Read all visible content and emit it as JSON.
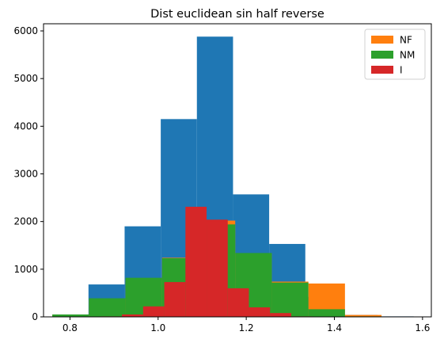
{
  "chart_data": {
    "type": "histogram",
    "title": "Dist euclidean sin half reverse",
    "xlabel": "",
    "ylabel": "",
    "xlim": [
      0.74,
      1.62
    ],
    "ylim": [
      0,
      6150
    ],
    "xticks": [
      0.8,
      1.0,
      1.2,
      1.4,
      1.6
    ],
    "xtick_labels": [
      "0.8",
      "1.0",
      "1.2",
      "1.4",
      "1.6"
    ],
    "yticks": [
      0,
      1000,
      2000,
      3000,
      4000,
      5000,
      6000
    ],
    "ytick_labels": [
      "0",
      "1000",
      "2000",
      "3000",
      "4000",
      "5000",
      "6000"
    ],
    "grid": false,
    "legend_position": "top-right",
    "series": [
      {
        "legend": false,
        "color": "#1f77b4",
        "edges": [
          0.76,
          0.842,
          0.924,
          1.006,
          1.088,
          1.17,
          1.252,
          1.334,
          1.416,
          1.498,
          1.58
        ],
        "values": [
          50,
          680,
          1900,
          4150,
          5880,
          2570,
          1530,
          420,
          40,
          10
        ]
      },
      {
        "name": "NF",
        "color": "#ff7f0e",
        "edges": [
          0.76,
          0.843,
          0.926,
          1.009,
          1.092,
          1.175,
          1.258,
          1.341,
          1.424,
          1.507
        ],
        "values": [
          50,
          350,
          760,
          1240,
          2020,
          1330,
          740,
          700,
          40
        ]
      },
      {
        "name": "NM",
        "color": "#2ca02c",
        "edges": [
          0.76,
          0.843,
          0.926,
          1.009,
          1.092,
          1.175,
          1.258,
          1.341,
          1.424,
          1.507
        ],
        "values": [
          50,
          390,
          820,
          1230,
          1940,
          1340,
          720,
          160,
          10
        ]
      },
      {
        "name": "I",
        "color": "#d62728",
        "edges": [
          0.87,
          0.918,
          0.966,
          1.014,
          1.062,
          1.11,
          1.158,
          1.206,
          1.254,
          1.302,
          1.35
        ],
        "values": [
          10,
          50,
          220,
          730,
          2310,
          2040,
          600,
          200,
          80,
          10
        ]
      }
    ]
  }
}
